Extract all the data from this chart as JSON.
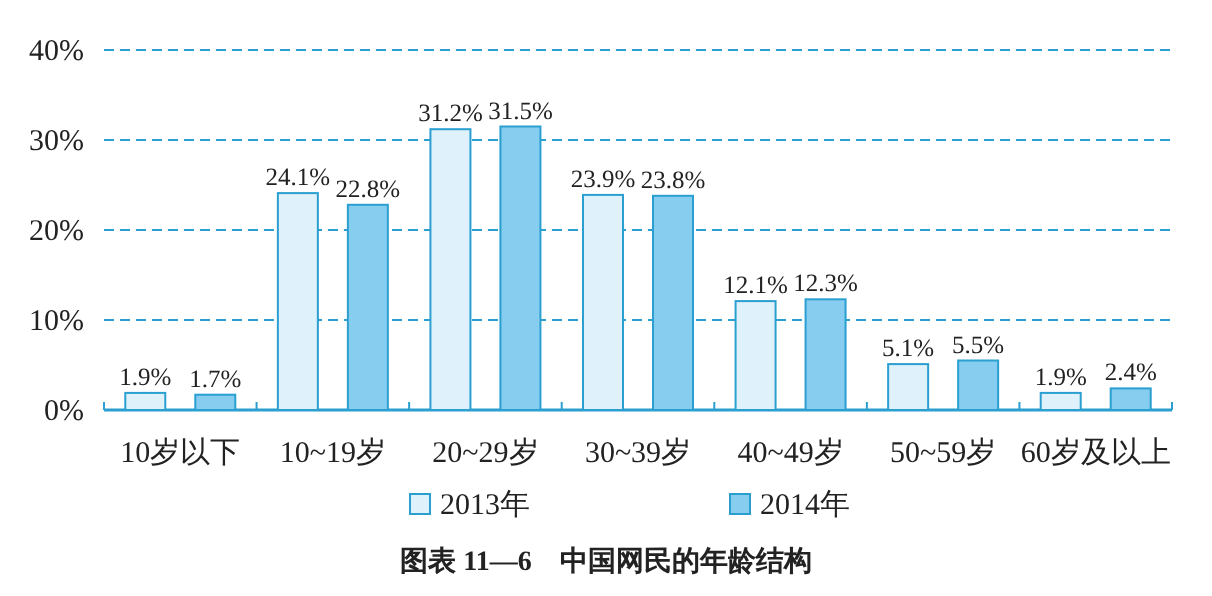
{
  "chart_data": {
    "type": "bar",
    "title": "图表 11—6　中国网民的年龄结构",
    "categories": [
      "10岁以下",
      "10~19岁",
      "20~29岁",
      "30~39岁",
      "40~49岁",
      "50~59岁",
      "60岁及以上"
    ],
    "series": [
      {
        "name": "2013年",
        "color": "#dff1fa",
        "values": [
          1.9,
          24.1,
          31.2,
          23.9,
          12.1,
          5.1,
          1.9
        ],
        "value_labels": [
          "1.9%",
          "24.1%",
          "31.2%",
          "23.9%",
          "12.1%",
          "5.1%",
          "1.9%"
        ]
      },
      {
        "name": "2014年",
        "color": "#86cdf0",
        "values": [
          1.7,
          22.8,
          31.5,
          23.8,
          12.3,
          5.5,
          2.4
        ],
        "value_labels": [
          "1.7%",
          "22.8%",
          "31.5%",
          "23.8%",
          "12.3%",
          "5.5%",
          "2.4%"
        ]
      }
    ],
    "ylim": [
      0,
      40
    ],
    "yticks": [
      {
        "value": 0,
        "label": "0%"
      },
      {
        "value": 10,
        "label": "10%"
      },
      {
        "value": 20,
        "label": "20%"
      },
      {
        "value": 30,
        "label": "30%"
      },
      {
        "value": 40,
        "label": "40%"
      }
    ],
    "grid": "y",
    "legend": "bottom"
  }
}
